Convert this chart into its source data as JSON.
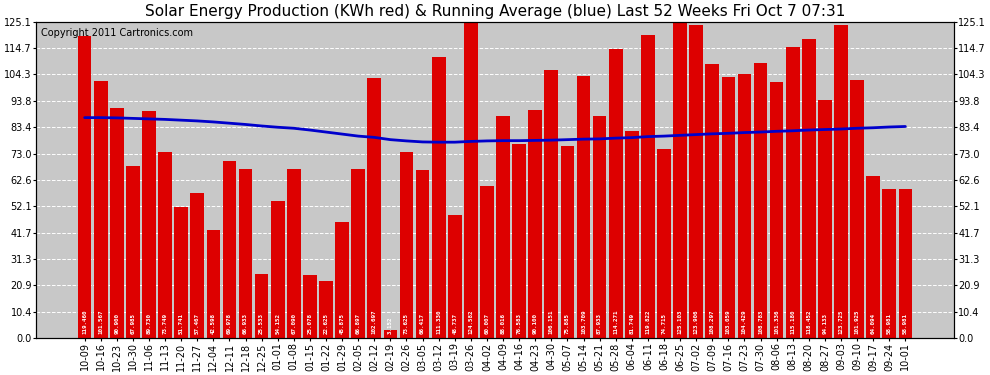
{
  "title": "Solar Energy Production (KWh red) & Running Average (blue) Last 52 Weeks Fri Oct 7 07:31",
  "copyright": "Copyright 2011 Cartronics.com",
  "bar_color": "#dd0000",
  "line_color": "#0000cc",
  "background_color": "#ffffff",
  "plot_bg_color": "#c8c8c8",
  "grid_color": "#ffffff",
  "ylim": [
    0,
    125.1
  ],
  "yticks": [
    0.0,
    10.4,
    20.9,
    31.3,
    41.7,
    52.1,
    62.6,
    73.0,
    83.4,
    93.8,
    104.3,
    114.7,
    125.1
  ],
  "bar_labels": [
    "10-09",
    "10-16",
    "10-23",
    "10-30",
    "11-06",
    "11-13",
    "11-20",
    "11-27",
    "12-04",
    "12-11",
    "12-18",
    "12-25",
    "01-01",
    "01-08",
    "01-15",
    "01-22",
    "01-29",
    "02-05",
    "02-12",
    "02-19",
    "02-26",
    "03-05",
    "03-12",
    "03-19",
    "03-26",
    "04-02",
    "04-09",
    "04-16",
    "04-23",
    "04-30",
    "05-07",
    "05-14",
    "05-21",
    "05-28",
    "06-04",
    "06-11",
    "06-18",
    "06-25",
    "07-02",
    "07-09",
    "07-16",
    "07-23",
    "07-30",
    "08-06",
    "08-13",
    "08-20",
    "08-27",
    "09-03",
    "09-10",
    "09-17",
    "09-24",
    "10-01"
  ],
  "bar_values": [
    119.46,
    101.567,
    90.9,
    67.985,
    89.73,
    73.749,
    51.741,
    57.467,
    42.598,
    69.978,
    66.933,
    25.533,
    54.152,
    67.09,
    25.078,
    22.625,
    45.875,
    66.897,
    102.697,
    3.152,
    73.625,
    66.417,
    111.33,
    48.737,
    124.582,
    60.007,
    88.016,
    76.583,
    90.1,
    106.151,
    75.885,
    103.709,
    87.933,
    114.271,
    81.749,
    119.822,
    74.715,
    125.103,
    123.906,
    108.297,
    103.059,
    104.429,
    108.783,
    101.336,
    115.18,
    118.452,
    94.133,
    123.725,
    101.925,
    64.094,
    58.981,
    58.981
  ],
  "running_avg": [
    87.2,
    87.2,
    87.1,
    86.9,
    86.7,
    86.5,
    86.2,
    85.9,
    85.5,
    85.0,
    84.5,
    83.9,
    83.4,
    83.0,
    82.3,
    81.5,
    80.7,
    79.9,
    79.4,
    78.5,
    78.0,
    77.6,
    77.5,
    77.5,
    77.8,
    78.0,
    78.1,
    78.1,
    78.2,
    78.3,
    78.5,
    78.7,
    78.8,
    79.1,
    79.3,
    79.7,
    79.9,
    80.2,
    80.5,
    80.8,
    81.0,
    81.3,
    81.5,
    81.8,
    82.0,
    82.3,
    82.5,
    82.7,
    83.0,
    83.2,
    83.5,
    83.7
  ],
  "title_fontsize": 11,
  "tick_fontsize": 7,
  "copyright_fontsize": 7
}
